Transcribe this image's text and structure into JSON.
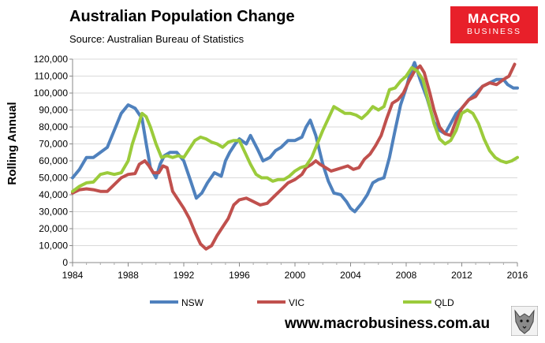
{
  "header": {
    "title": "Australian Population Change",
    "source": "Source: Australian Bureau of Statistics",
    "logo_line1": "MACRO",
    "logo_line2": "BUSINESS"
  },
  "footer": {
    "website": "www.macrobusiness.com.au"
  },
  "colors": {
    "NSW": "#4f81bd",
    "VIC": "#c0504d",
    "QLD": "#9bcb3b",
    "grid": "#d9d9d9",
    "logo_bg": "#e8202a"
  },
  "chart_data": {
    "type": "line",
    "title": "Australian Population Change",
    "xlabel": "",
    "ylabel": "Rolling Annual",
    "xlim": [
      1984,
      2016
    ],
    "ylim": [
      0,
      120000
    ],
    "x_ticks": [
      1984,
      1988,
      1992,
      1996,
      2000,
      2004,
      2008,
      2012,
      2016
    ],
    "y_ticks": [
      0,
      10000,
      20000,
      30000,
      40000,
      50000,
      60000,
      70000,
      80000,
      90000,
      100000,
      110000,
      120000
    ],
    "y_tick_labels": [
      "0",
      "10,000",
      "20,000",
      "30,000",
      "40,000",
      "50,000",
      "60,000",
      "70,000",
      "80,000",
      "90,000",
      "100,000",
      "110,000",
      "120,000"
    ],
    "grid": true,
    "legend_position": "bottom",
    "series": [
      {
        "name": "NSW",
        "points": [
          [
            1984,
            50000
          ],
          [
            1984.5,
            55000
          ],
          [
            1985,
            62000
          ],
          [
            1985.5,
            62000
          ],
          [
            1986,
            65000
          ],
          [
            1986.5,
            68000
          ],
          [
            1987,
            78000
          ],
          [
            1987.5,
            88000
          ],
          [
            1988,
            93000
          ],
          [
            1988.5,
            91000
          ],
          [
            1989,
            85000
          ],
          [
            1989.3,
            70000
          ],
          [
            1989.6,
            56000
          ],
          [
            1990,
            50000
          ],
          [
            1990.3,
            58000
          ],
          [
            1990.6,
            63000
          ],
          [
            1991,
            65000
          ],
          [
            1991.5,
            65000
          ],
          [
            1992,
            60000
          ],
          [
            1992.5,
            48000
          ],
          [
            1992.9,
            38000
          ],
          [
            1993.3,
            41000
          ],
          [
            1993.7,
            47000
          ],
          [
            1994.2,
            53000
          ],
          [
            1994.7,
            51000
          ],
          [
            1995,
            60000
          ],
          [
            1995.3,
            65000
          ],
          [
            1995.7,
            70000
          ],
          [
            1996,
            73000
          ],
          [
            1996.5,
            70000
          ],
          [
            1996.8,
            75000
          ],
          [
            1997.3,
            67000
          ],
          [
            1997.7,
            60000
          ],
          [
            1998.2,
            62000
          ],
          [
            1998.6,
            66000
          ],
          [
            1999,
            68000
          ],
          [
            1999.5,
            72000
          ],
          [
            2000,
            72000
          ],
          [
            2000.5,
            74000
          ],
          [
            2000.8,
            80000
          ],
          [
            2001.1,
            84000
          ],
          [
            2001.5,
            75000
          ],
          [
            2002,
            58000
          ],
          [
            2002.4,
            48000
          ],
          [
            2002.8,
            41000
          ],
          [
            2003.3,
            40000
          ],
          [
            2003.7,
            36000
          ],
          [
            2004,
            32000
          ],
          [
            2004.3,
            30000
          ],
          [
            2004.8,
            35000
          ],
          [
            2005.2,
            40000
          ],
          [
            2005.6,
            47000
          ],
          [
            2006,
            49000
          ],
          [
            2006.4,
            50000
          ],
          [
            2006.8,
            62000
          ],
          [
            2007.2,
            78000
          ],
          [
            2007.6,
            93000
          ],
          [
            2008,
            103000
          ],
          [
            2008.3,
            112000
          ],
          [
            2008.6,
            118000
          ],
          [
            2009,
            108000
          ],
          [
            2009.5,
            97000
          ],
          [
            2010,
            83000
          ],
          [
            2010.4,
            78000
          ],
          [
            2010.8,
            76000
          ],
          [
            2011.2,
            82000
          ],
          [
            2011.6,
            88000
          ],
          [
            2012,
            91000
          ],
          [
            2012.5,
            96000
          ],
          [
            2013,
            100000
          ],
          [
            2013.5,
            104000
          ],
          [
            2014,
            106000
          ],
          [
            2014.5,
            108000
          ],
          [
            2015,
            108000
          ],
          [
            2015.3,
            105000
          ],
          [
            2015.7,
            103000
          ],
          [
            2016,
            103000
          ]
        ]
      },
      {
        "name": "VIC",
        "points": [
          [
            1984,
            41000
          ],
          [
            1984.5,
            43000
          ],
          [
            1985,
            43500
          ],
          [
            1985.5,
            43000
          ],
          [
            1986,
            42000
          ],
          [
            1986.5,
            42000
          ],
          [
            1987,
            46000
          ],
          [
            1987.5,
            50000
          ],
          [
            1988,
            52000
          ],
          [
            1988.5,
            52500
          ],
          [
            1988.8,
            58000
          ],
          [
            1989.2,
            60000
          ],
          [
            1989.5,
            57000
          ],
          [
            1989.8,
            53000
          ],
          [
            1990.2,
            53000
          ],
          [
            1990.5,
            57000
          ],
          [
            1990.8,
            56000
          ],
          [
            1991.2,
            42000
          ],
          [
            1991.6,
            37000
          ],
          [
            1992,
            32000
          ],
          [
            1992.4,
            26000
          ],
          [
            1992.8,
            18000
          ],
          [
            1993.2,
            11000
          ],
          [
            1993.6,
            8000
          ],
          [
            1994,
            10000
          ],
          [
            1994.4,
            16000
          ],
          [
            1994.8,
            21000
          ],
          [
            1995.2,
            26000
          ],
          [
            1995.6,
            34000
          ],
          [
            1996,
            37000
          ],
          [
            1996.5,
            38000
          ],
          [
            1997,
            36000
          ],
          [
            1997.5,
            34000
          ],
          [
            1998,
            35000
          ],
          [
            1998.5,
            39000
          ],
          [
            1999,
            43000
          ],
          [
            1999.5,
            47000
          ],
          [
            2000,
            49000
          ],
          [
            2000.5,
            52000
          ],
          [
            2000.8,
            56000
          ],
          [
            2001.2,
            58000
          ],
          [
            2001.5,
            60000
          ],
          [
            2001.8,
            58000
          ],
          [
            2002.2,
            56000
          ],
          [
            2002.6,
            54000
          ],
          [
            2003,
            55000
          ],
          [
            2003.4,
            56000
          ],
          [
            2003.8,
            57000
          ],
          [
            2004.2,
            55000
          ],
          [
            2004.6,
            56000
          ],
          [
            2005,
            61000
          ],
          [
            2005.4,
            64000
          ],
          [
            2005.8,
            69000
          ],
          [
            2006.2,
            75000
          ],
          [
            2006.6,
            85000
          ],
          [
            2007,
            94000
          ],
          [
            2007.4,
            96000
          ],
          [
            2007.8,
            100000
          ],
          [
            2008.2,
            107000
          ],
          [
            2008.6,
            113000
          ],
          [
            2009,
            116000
          ],
          [
            2009.3,
            112000
          ],
          [
            2009.7,
            100000
          ],
          [
            2010,
            90000
          ],
          [
            2010.4,
            80000
          ],
          [
            2010.8,
            76000
          ],
          [
            2011.2,
            75000
          ],
          [
            2011.6,
            84000
          ],
          [
            2012,
            91000
          ],
          [
            2012.5,
            96000
          ],
          [
            2013,
            98000
          ],
          [
            2013.5,
            104000
          ],
          [
            2014,
            106000
          ],
          [
            2014.5,
            105000
          ],
          [
            2015,
            108000
          ],
          [
            2015.4,
            110000
          ],
          [
            2015.8,
            117000
          ]
        ]
      },
      {
        "name": "QLD",
        "points": [
          [
            1984,
            42000
          ],
          [
            1984.5,
            45000
          ],
          [
            1985,
            47000
          ],
          [
            1985.5,
            47500
          ],
          [
            1986,
            52000
          ],
          [
            1986.5,
            53000
          ],
          [
            1987,
            52000
          ],
          [
            1987.5,
            53000
          ],
          [
            1988,
            60000
          ],
          [
            1988.3,
            70000
          ],
          [
            1988.7,
            80000
          ],
          [
            1989,
            88000
          ],
          [
            1989.3,
            86000
          ],
          [
            1989.6,
            80000
          ],
          [
            1990,
            70000
          ],
          [
            1990.4,
            62000
          ],
          [
            1990.8,
            63000
          ],
          [
            1991.2,
            62000
          ],
          [
            1991.6,
            63000
          ],
          [
            1992,
            62000
          ],
          [
            1992.4,
            67000
          ],
          [
            1992.8,
            72000
          ],
          [
            1993.2,
            74000
          ],
          [
            1993.6,
            73000
          ],
          [
            1994,
            71000
          ],
          [
            1994.4,
            70000
          ],
          [
            1994.8,
            68000
          ],
          [
            1995.2,
            71000
          ],
          [
            1995.6,
            72000
          ],
          [
            1996,
            72000
          ],
          [
            1996.4,
            65000
          ],
          [
            1996.8,
            58000
          ],
          [
            1997.2,
            52000
          ],
          [
            1997.6,
            50000
          ],
          [
            1998,
            50000
          ],
          [
            1998.4,
            48000
          ],
          [
            1998.8,
            49000
          ],
          [
            1999.2,
            49000
          ],
          [
            1999.6,
            51000
          ],
          [
            2000,
            54000
          ],
          [
            2000.4,
            56000
          ],
          [
            2000.8,
            57000
          ],
          [
            2001.2,
            62000
          ],
          [
            2001.6,
            70000
          ],
          [
            2002,
            78000
          ],
          [
            2002.4,
            85000
          ],
          [
            2002.8,
            92000
          ],
          [
            2003.2,
            90000
          ],
          [
            2003.6,
            88000
          ],
          [
            2004,
            88000
          ],
          [
            2004.4,
            87000
          ],
          [
            2004.8,
            85000
          ],
          [
            2005.2,
            88000
          ],
          [
            2005.6,
            92000
          ],
          [
            2006,
            90000
          ],
          [
            2006.4,
            92000
          ],
          [
            2006.8,
            102000
          ],
          [
            2007.2,
            103000
          ],
          [
            2007.6,
            107000
          ],
          [
            2008,
            110000
          ],
          [
            2008.4,
            115000
          ],
          [
            2008.8,
            113000
          ],
          [
            2009.2,
            108000
          ],
          [
            2009.6,
            95000
          ],
          [
            2010,
            82000
          ],
          [
            2010.4,
            73000
          ],
          [
            2010.8,
            70000
          ],
          [
            2011.2,
            72000
          ],
          [
            2011.6,
            78000
          ],
          [
            2012,
            88000
          ],
          [
            2012.4,
            90000
          ],
          [
            2012.8,
            88000
          ],
          [
            2013.2,
            82000
          ],
          [
            2013.6,
            73000
          ],
          [
            2014,
            66000
          ],
          [
            2014.4,
            62000
          ],
          [
            2014.8,
            60000
          ],
          [
            2015.2,
            59000
          ],
          [
            2015.6,
            60000
          ],
          [
            2016,
            62000
          ]
        ]
      }
    ]
  }
}
